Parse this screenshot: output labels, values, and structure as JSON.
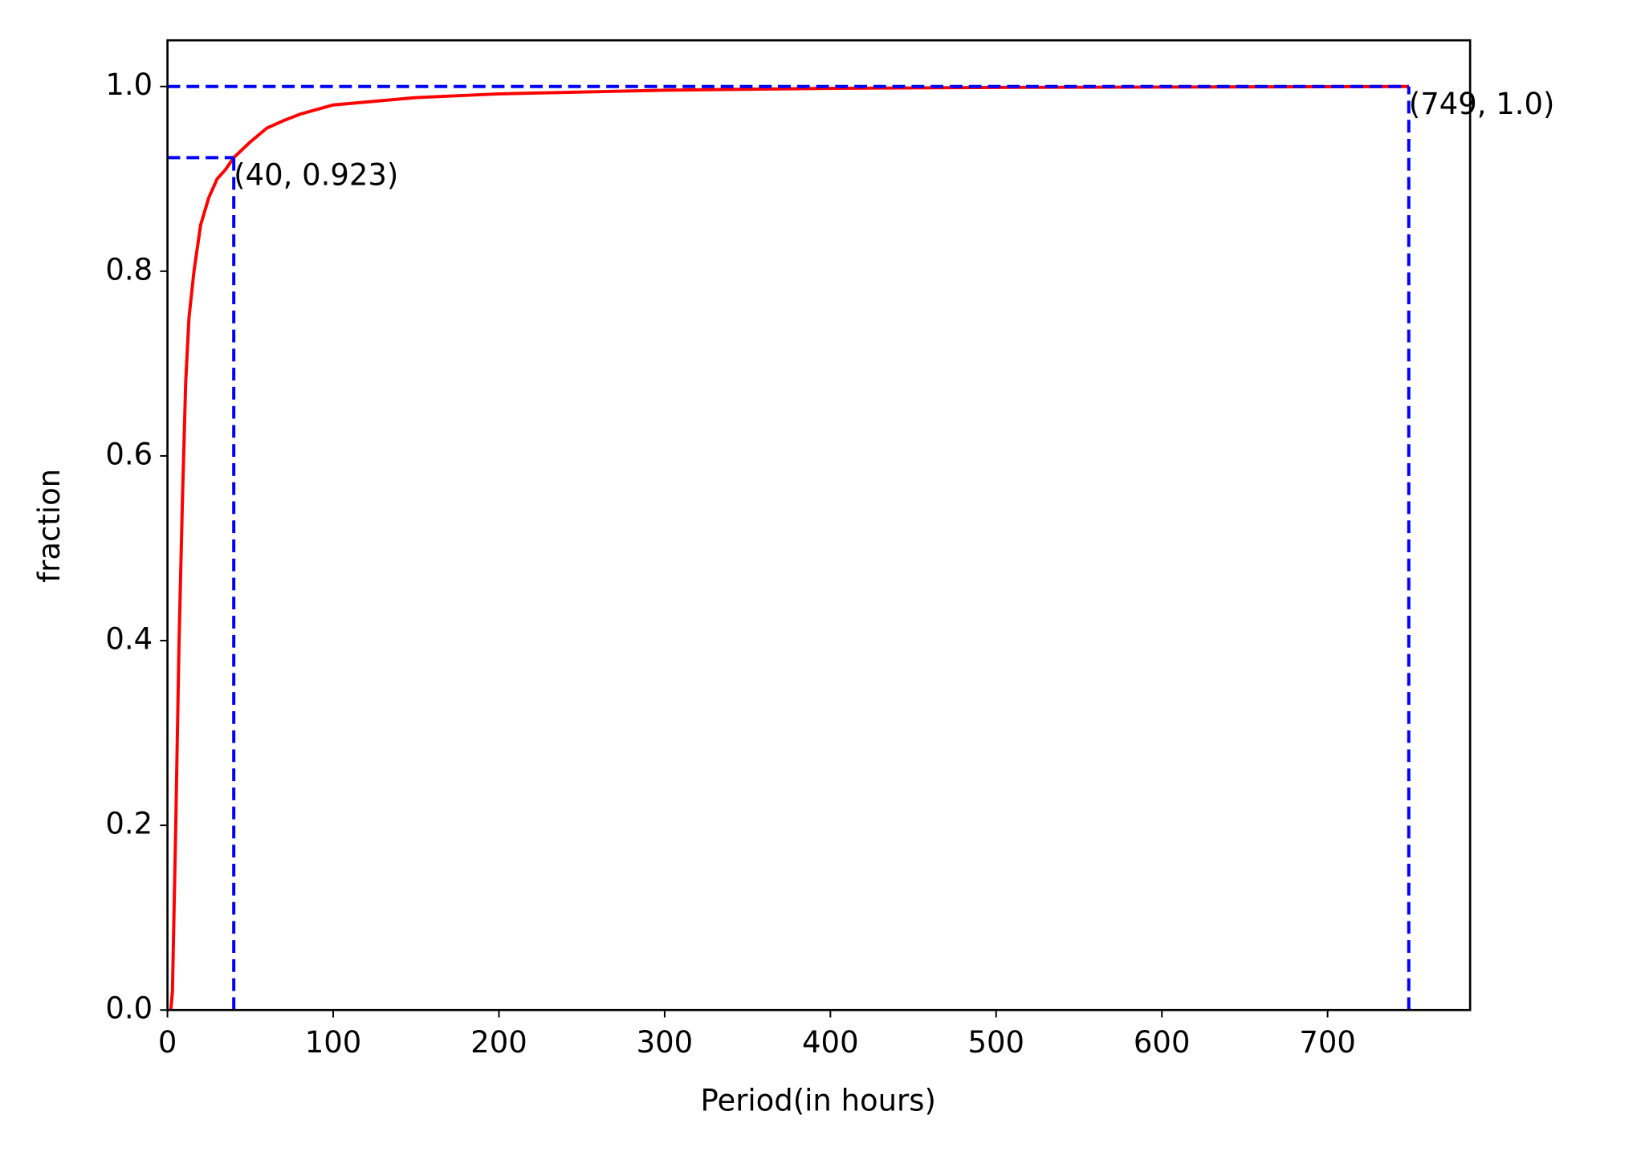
{
  "chart_data": {
    "type": "line",
    "xlabel": "Period(in hours)",
    "ylabel": "fraction",
    "x": [
      2,
      3,
      5,
      7,
      9,
      11,
      13,
      16,
      20,
      25,
      30,
      35,
      40,
      50,
      60,
      70,
      80,
      100,
      150,
      200,
      300,
      400,
      500,
      749
    ],
    "values": [
      0,
      0.02,
      0.2,
      0.4,
      0.55,
      0.68,
      0.75,
      0.8,
      0.85,
      0.88,
      0.9,
      0.91,
      0.923,
      0.94,
      0.955,
      0.963,
      0.97,
      0.98,
      0.988,
      0.992,
      0.996,
      0.998,
      0.999,
      1.0
    ],
    "color": "#ff0000",
    "xlim": [
      0,
      786
    ],
    "xticks": [
      0,
      100,
      200,
      300,
      400,
      500,
      600,
      700
    ],
    "ylim": [
      0,
      1.05
    ],
    "yticks": [
      {
        "value": 0,
        "label": "0.0"
      },
      0.2,
      0.4,
      0.6,
      0.8,
      {
        "value": 1,
        "label": "1.0"
      }
    ],
    "annotations": [
      {
        "text": "(40, 0.923)",
        "x": 40,
        "y": 0.923
      },
      {
        "text": "(749, 1.0)",
        "x": 749,
        "y": 1.0
      }
    ],
    "annotation_color": "#0000ff"
  }
}
